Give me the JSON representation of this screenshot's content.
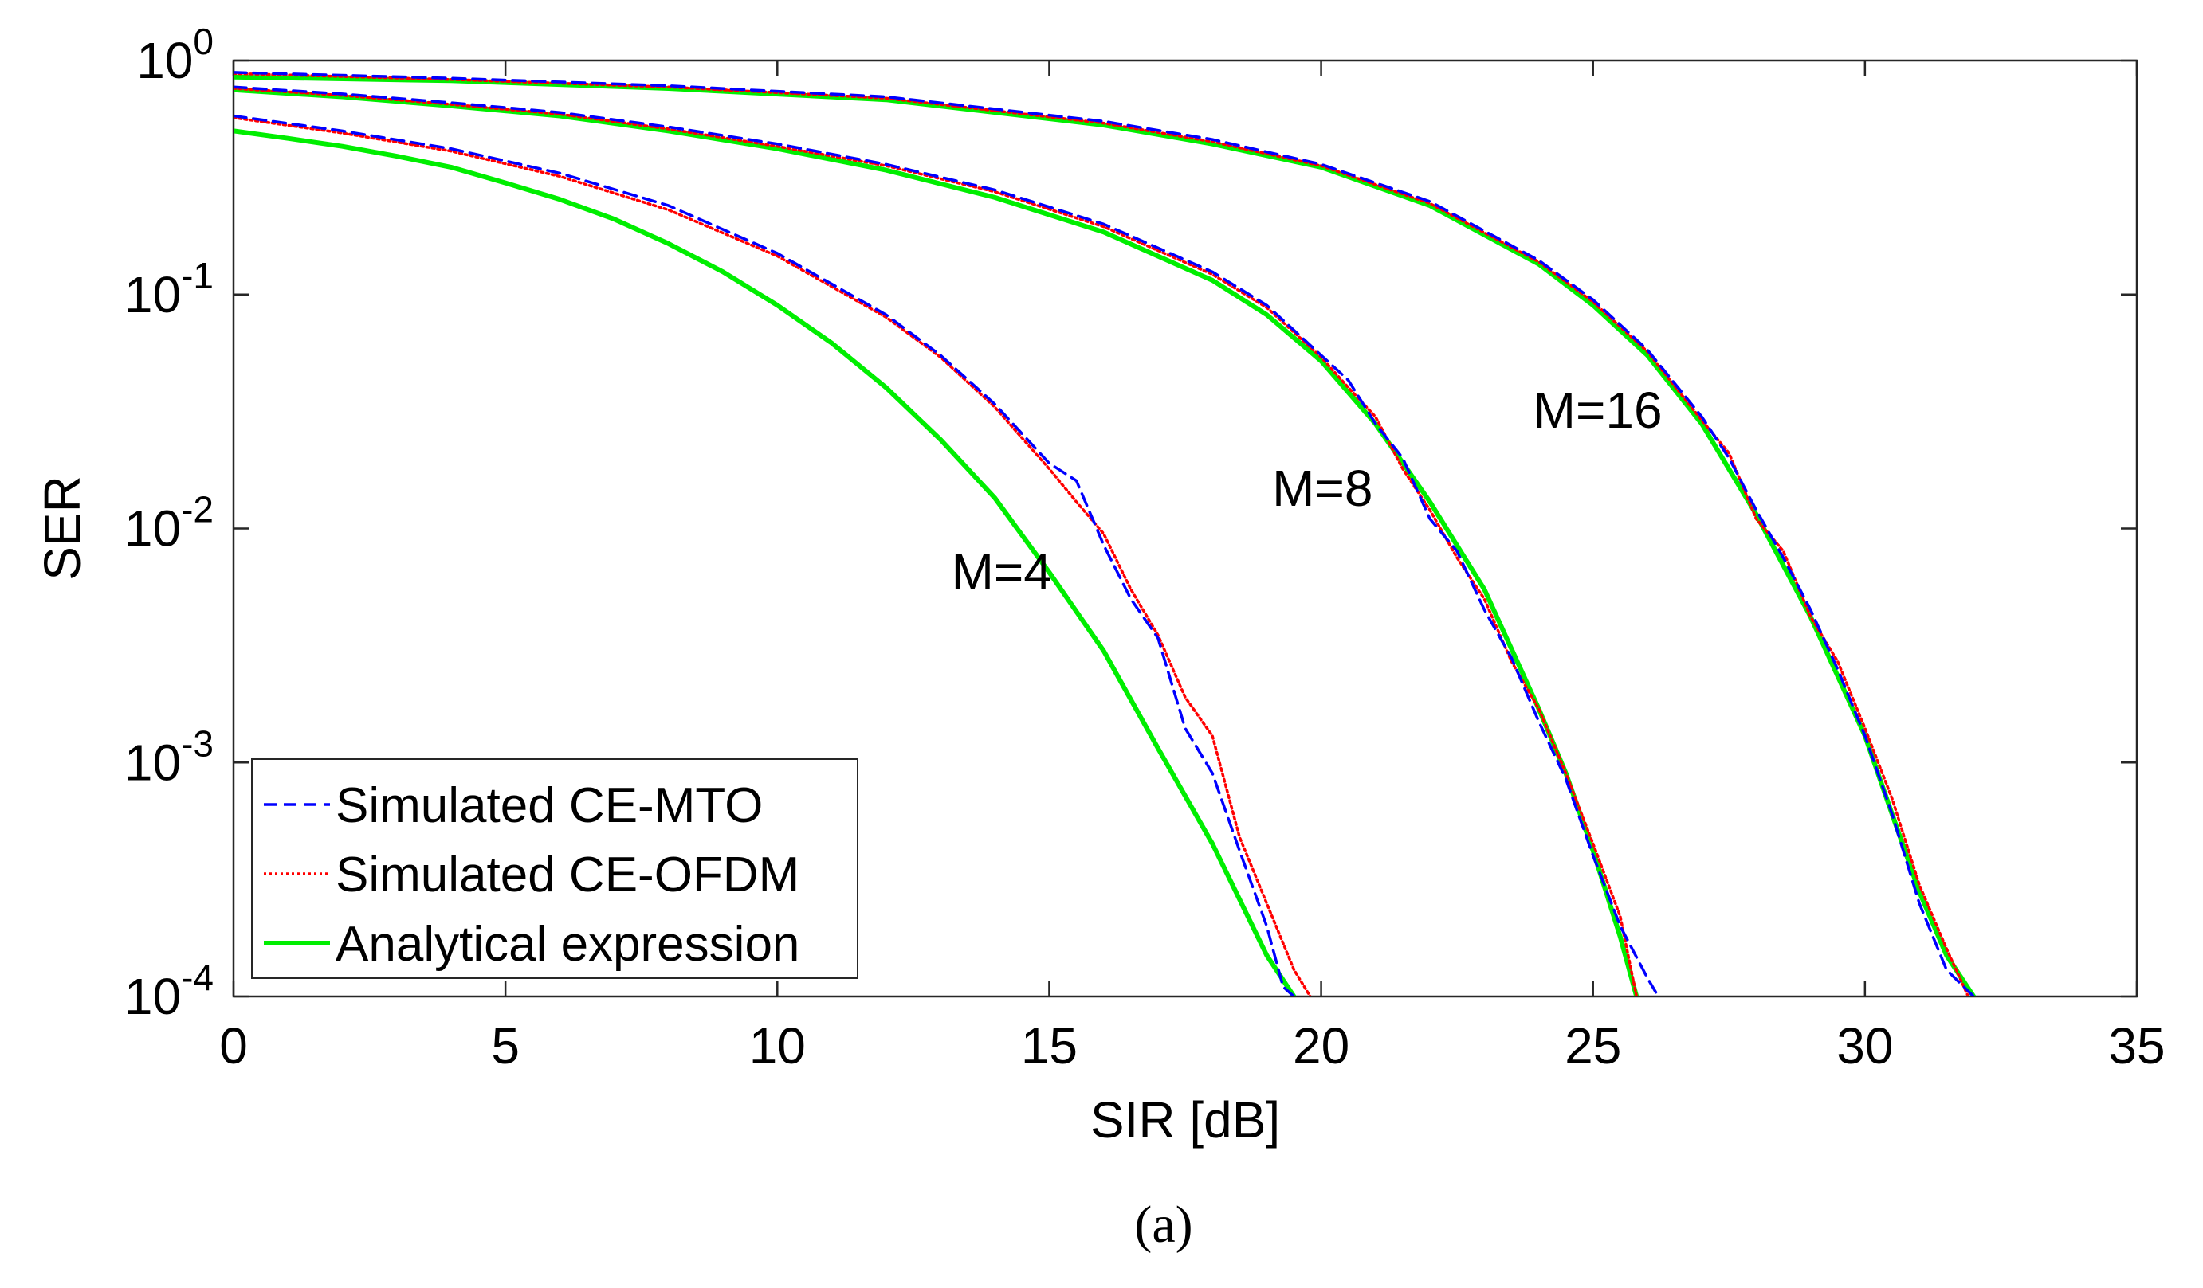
{
  "chart_data": {
    "type": "line",
    "x_scale": "linear",
    "y_scale": "log",
    "xlabel": "SIR [dB]",
    "ylabel": "SER",
    "xlim": [
      0,
      35
    ],
    "ylim": [
      0.0001,
      1
    ],
    "x_ticks": [
      0,
      5,
      10,
      15,
      20,
      25,
      30,
      35
    ],
    "x_tick_labels": [
      "0",
      "5",
      "10",
      "15",
      "20",
      "25",
      "30",
      "35"
    ],
    "y_ticks": [
      1,
      0.1,
      0.01,
      0.001,
      0.0001
    ],
    "y_tick_labels": [
      {
        "base": "10",
        "exp": "0"
      },
      {
        "base": "10",
        "exp": "-1"
      },
      {
        "base": "10",
        "exp": "-2"
      },
      {
        "base": "10",
        "exp": "-3"
      },
      {
        "base": "10",
        "exp": "-4"
      }
    ],
    "grid": false,
    "legend_position": "bottom-left",
    "legend": [
      {
        "label": "Simulated CE-MTO",
        "color": "#0000ff",
        "style": "dashed"
      },
      {
        "label": "Simulated CE-OFDM",
        "color": "#ff0000",
        "style": "dotted"
      },
      {
        "label": "Analytical expression",
        "color": "#00ff00",
        "style": "solid"
      }
    ],
    "annotations": [
      {
        "text": "M=4",
        "x": 13.2,
        "y": 0.0055
      },
      {
        "text": "M=8",
        "x": 19.1,
        "y": 0.0125
      },
      {
        "text": "M=16",
        "x": 23.9,
        "y": 0.027
      }
    ],
    "series": [
      {
        "name": "Simulated CE-MTO",
        "group": "M=4",
        "x": [
          0,
          2,
          4,
          6,
          8,
          10,
          12,
          13,
          14,
          15,
          15.5,
          16,
          16.5,
          17,
          17.5,
          18,
          18.5,
          19,
          19.3,
          19.5
        ],
        "y": [
          0.58,
          0.5,
          0.42,
          0.33,
          0.24,
          0.15,
          0.082,
          0.055,
          0.034,
          0.019,
          0.016,
          0.0085,
          0.005,
          0.0034,
          0.0014,
          0.0009,
          0.00042,
          0.0002,
          0.00011,
          0.0001
        ]
      },
      {
        "name": "Simulated CE-OFDM",
        "group": "M=4",
        "x": [
          0,
          2,
          4,
          6,
          8,
          10,
          12,
          13,
          14,
          15,
          15.5,
          16,
          16.5,
          17,
          17.5,
          18,
          18.5,
          19,
          19.5,
          19.8
        ],
        "y": [
          0.57,
          0.49,
          0.41,
          0.32,
          0.23,
          0.146,
          0.08,
          0.054,
          0.033,
          0.018,
          0.013,
          0.0095,
          0.0055,
          0.0035,
          0.0019,
          0.0013,
          0.00048,
          0.00025,
          0.00013,
          0.0001
        ]
      },
      {
        "name": "Analytical expression",
        "group": "M=4",
        "x": [
          0,
          1,
          2,
          3,
          4,
          5,
          6,
          7,
          8,
          9,
          10,
          11,
          12,
          13,
          14,
          15,
          16,
          17,
          18,
          18.5,
          19,
          19.5
        ],
        "y": [
          0.5,
          0.465,
          0.43,
          0.39,
          0.35,
          0.3,
          0.255,
          0.21,
          0.165,
          0.125,
          0.09,
          0.062,
          0.04,
          0.024,
          0.0135,
          0.0065,
          0.003,
          0.00115,
          0.00045,
          0.00026,
          0.00015,
          0.0001
        ]
      },
      {
        "name": "Simulated CE-MTO",
        "group": "M=8",
        "x": [
          0,
          2,
          4,
          6,
          8,
          10,
          12,
          14,
          16,
          18,
          19,
          20,
          20.5,
          21,
          21.5,
          22,
          22.5,
          23,
          23.5,
          24,
          24.5,
          25,
          25.5,
          26,
          26.2
        ],
        "y": [
          0.77,
          0.72,
          0.66,
          0.6,
          0.52,
          0.44,
          0.36,
          0.28,
          0.2,
          0.125,
          0.09,
          0.055,
          0.043,
          0.028,
          0.02,
          0.011,
          0.008,
          0.0045,
          0.0028,
          0.0015,
          0.00085,
          0.0004,
          0.0002,
          0.00012,
          0.0001
        ]
      },
      {
        "name": "Simulated CE-OFDM",
        "group": "M=8",
        "x": [
          0,
          2,
          4,
          6,
          8,
          10,
          12,
          14,
          16,
          18,
          19,
          20,
          20.5,
          21,
          21.5,
          22,
          22.5,
          23,
          23.5,
          24,
          24.5,
          25,
          25.5,
          25.8
        ],
        "y": [
          0.76,
          0.71,
          0.65,
          0.59,
          0.51,
          0.43,
          0.355,
          0.275,
          0.195,
          0.122,
          0.088,
          0.054,
          0.04,
          0.03,
          0.018,
          0.012,
          0.0075,
          0.005,
          0.0027,
          0.0017,
          0.0009,
          0.00045,
          0.00022,
          0.0001
        ]
      },
      {
        "name": "Analytical expression",
        "group": "M=8",
        "x": [
          0,
          2,
          4,
          6,
          8,
          10,
          12,
          14,
          16,
          18,
          19,
          20,
          21,
          22,
          23,
          24,
          24.5,
          25,
          25.5,
          25.8
        ],
        "y": [
          0.75,
          0.7,
          0.64,
          0.58,
          0.5,
          0.42,
          0.34,
          0.26,
          0.185,
          0.115,
          0.082,
          0.052,
          0.028,
          0.013,
          0.0055,
          0.0017,
          0.0009,
          0.00042,
          0.00018,
          0.0001
        ]
      },
      {
        "name": "Simulated CE-MTO",
        "group": "M=16",
        "x": [
          0,
          4,
          8,
          12,
          16,
          18,
          20,
          22,
          24,
          25,
          26,
          27,
          27.5,
          28,
          28.5,
          29,
          29.5,
          30,
          30.5,
          31,
          31.5,
          32
        ],
        "y": [
          0.89,
          0.84,
          0.78,
          0.7,
          0.55,
          0.46,
          0.36,
          0.25,
          0.14,
          0.095,
          0.058,
          0.03,
          0.02,
          0.012,
          0.0075,
          0.0045,
          0.0025,
          0.0013,
          0.0006,
          0.00025,
          0.00013,
          0.0001
        ]
      },
      {
        "name": "Simulated CE-OFDM",
        "group": "M=16",
        "x": [
          0,
          4,
          8,
          12,
          16,
          18,
          20,
          22,
          24,
          25,
          26,
          27,
          27.5,
          28,
          28.5,
          29,
          29.5,
          30,
          30.5,
          31,
          31.5,
          31.9
        ],
        "y": [
          0.88,
          0.83,
          0.77,
          0.69,
          0.54,
          0.45,
          0.355,
          0.245,
          0.138,
          0.093,
          0.057,
          0.029,
          0.021,
          0.011,
          0.008,
          0.0042,
          0.0027,
          0.0014,
          0.0007,
          0.0003,
          0.00016,
          0.0001
        ]
      },
      {
        "name": "Analytical expression",
        "group": "M=16",
        "x": [
          0,
          4,
          8,
          12,
          16,
          18,
          20,
          22,
          24,
          25,
          26,
          27,
          28,
          29,
          30,
          30.5,
          31,
          31.5,
          32
        ],
        "y": [
          0.85,
          0.82,
          0.76,
          0.68,
          0.53,
          0.44,
          0.35,
          0.24,
          0.135,
          0.09,
          0.055,
          0.028,
          0.0115,
          0.0042,
          0.0013,
          0.0006,
          0.00028,
          0.00015,
          0.0001
        ]
      }
    ]
  },
  "caption": "(a)"
}
